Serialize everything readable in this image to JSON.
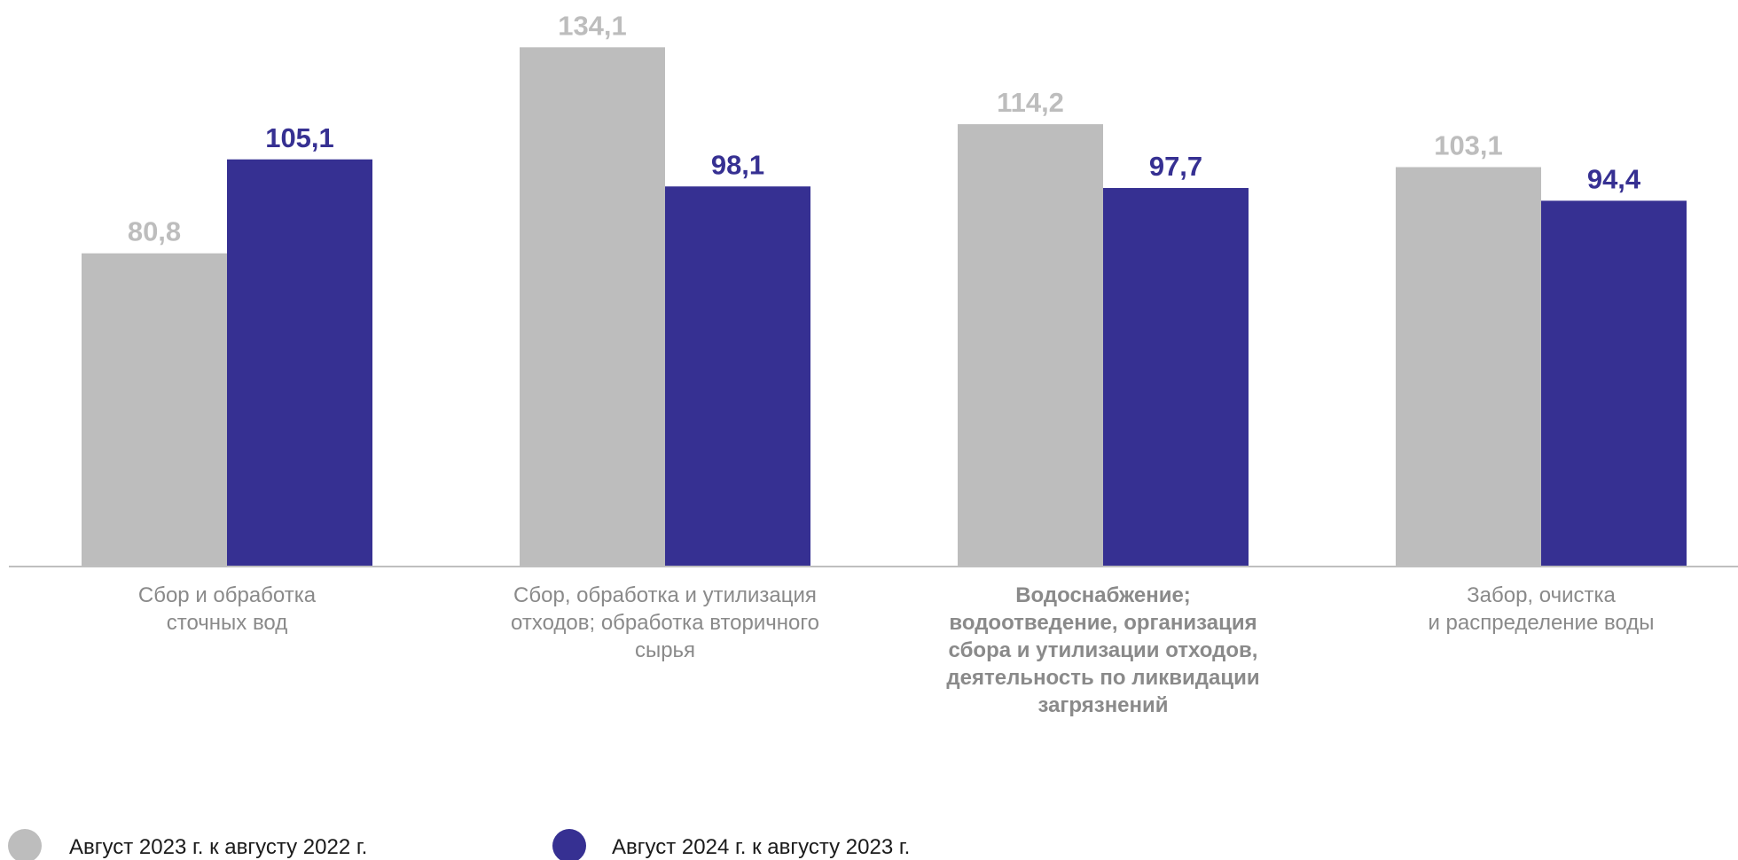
{
  "colors": {
    "series_2023": "#bdbdbd",
    "series_2024": "#363092",
    "axis": "#bfbfbf",
    "category_text": "#8a8a8a",
    "legend_text": "#1a1a1a"
  },
  "chart_data": {
    "type": "bar",
    "title": "",
    "xlabel": "",
    "ylabel": "",
    "ylim": [
      0,
      140
    ],
    "grid": false,
    "legend_position": "bottom-left",
    "categories": [
      {
        "lines": [
          "Сбор и обработка",
          "сточных вод"
        ],
        "bold": false
      },
      {
        "lines": [
          "Сбор, обработка и утилизация",
          "отходов; обработка вторичного",
          "сырья"
        ],
        "bold": false
      },
      {
        "lines": [
          "Водоснабжение;",
          "водоотведение, организация",
          "сбора и утилизации отходов,",
          "деятельность по ликвидации",
          "загрязнений"
        ],
        "bold": true
      },
      {
        "lines": [
          "Забор, очистка",
          "и распределение воды"
        ],
        "bold": false
      }
    ],
    "series": [
      {
        "name": "Август 2023 г. к  августу 2022 г.",
        "color": "#bdbdbd",
        "values": [
          80.8,
          134.1,
          114.2,
          103.1
        ],
        "labels": [
          "80,8",
          "134,1",
          "114,2",
          "103,1"
        ]
      },
      {
        "name": "Август 2024 г. к  августу 2023 г.",
        "color": "#363092",
        "values": [
          105.1,
          98.1,
          97.7,
          94.4
        ],
        "labels": [
          "105,1",
          "98,1",
          "97,7",
          "94,4"
        ]
      }
    ]
  }
}
